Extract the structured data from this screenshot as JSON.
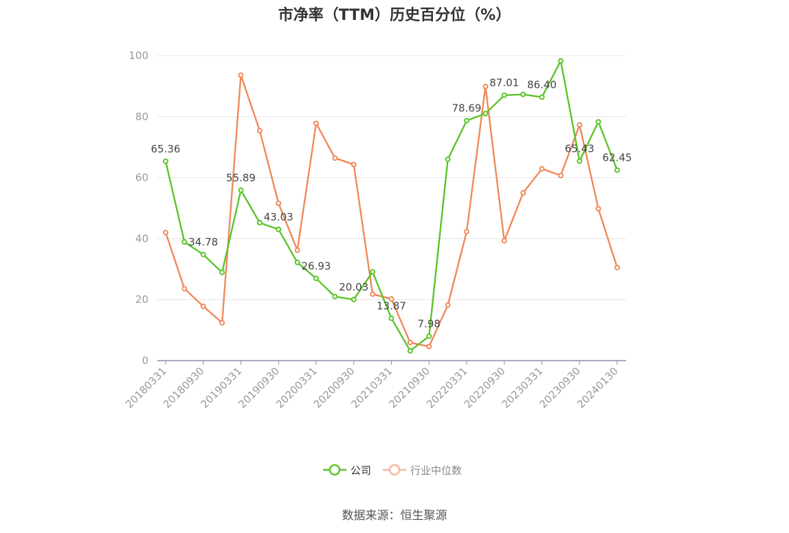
{
  "chart_data": {
    "type": "line",
    "title": "市净率（TTM）历史百分位（%）",
    "xlabel": "",
    "ylabel": "",
    "ylim": [
      0,
      100
    ],
    "yticks": [
      0,
      20,
      40,
      60,
      80,
      100
    ],
    "grid": true,
    "legend_position": "bottom",
    "x": [
      "20180331",
      "20180630",
      "20180930",
      "20181231",
      "20190331",
      "20190630",
      "20190930",
      "20191231",
      "20200331",
      "20200630",
      "20200930",
      "20201231",
      "20210331",
      "20210630",
      "20210930",
      "20211231",
      "20220331",
      "20220630",
      "20220930",
      "20221231",
      "20230331",
      "20230630",
      "20230930",
      "20231231",
      "20240130"
    ],
    "xtick_labels": [
      "20180331",
      "20180930",
      "20190331",
      "20190930",
      "20200331",
      "20200930",
      "20210331",
      "20210930",
      "20220331",
      "20220930",
      "20230331",
      "20230930",
      "20240130"
    ],
    "series": [
      {
        "name": "公司",
        "color": "#5bc42a",
        "values": [
          65.36,
          38.9,
          34.78,
          28.9,
          55.89,
          45.2,
          43.03,
          32.2,
          26.93,
          21.0,
          20.03,
          29.1,
          13.87,
          3.2,
          7.98,
          66.0,
          78.69,
          81.0,
          87.01,
          87.3,
          86.4,
          98.3,
          65.43,
          78.3,
          62.45
        ],
        "labels": {
          "0": "65.36",
          "2": "34.78",
          "4": "55.89",
          "6": "43.03",
          "8": "26.93",
          "10": "20.03",
          "12": "13.87",
          "14": "7.98",
          "16": "78.69",
          "18": "87.01",
          "20": "86.40",
          "22": "65.43",
          "24": "62.45"
        }
      },
      {
        "name": "行业中位数",
        "color": "#f0885a",
        "values": [
          42.0,
          23.6,
          17.8,
          12.4,
          93.6,
          75.4,
          51.6,
          36.2,
          77.8,
          66.4,
          64.3,
          21.8,
          20.2,
          5.9,
          4.6,
          18.2,
          42.3,
          89.9,
          39.3,
          55.0,
          62.9,
          60.7,
          77.3,
          49.8,
          30.5
        ],
        "labels": {}
      }
    ]
  },
  "legend": {
    "company_label": "公司",
    "industry_label": "行业中位数"
  },
  "source_note": "数据来源：恒生聚源"
}
